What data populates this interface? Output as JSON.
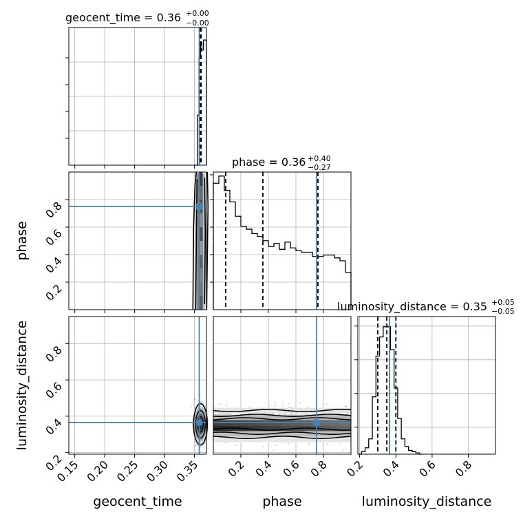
{
  "chart_data": {
    "type": "corner",
    "parameters": [
      "geocent_time",
      "phase",
      "luminosity_distance"
    ],
    "truths": {
      "geocent_time": 0.36,
      "phase": 0.75,
      "luminosity_distance": 0.365
    },
    "accent_color": "#4682b4",
    "grid": true,
    "titles": [
      {
        "name": "geocent_time",
        "median": "0.36",
        "plus": "+0.00",
        "minus": "−0.00"
      },
      {
        "name": "phase",
        "median": "0.36",
        "plus": "+0.40",
        "minus": "−0.27"
      },
      {
        "name": "luminosity_distance",
        "median": "0.35",
        "plus": "+0.05",
        "minus": "−0.05"
      }
    ],
    "axes": {
      "geocent_time": {
        "xlabel": "geocent_time",
        "range": [
          0.14,
          0.37
        ],
        "ticks": [
          0.15,
          0.2,
          0.25,
          0.3,
          0.35
        ],
        "tick_labels": [
          "0.15",
          "0.20",
          "0.25",
          "0.30",
          "0.35"
        ]
      },
      "phase": {
        "ylabel": "phase",
        "xlabel": "phase",
        "range": [
          0.0,
          1.0
        ],
        "ticks": [
          0.2,
          0.4,
          0.6,
          0.8
        ],
        "tick_labels": [
          "0.2",
          "0.4",
          "0.6",
          "0.8"
        ]
      },
      "luminosity_distance": {
        "ylabel": "luminosity_distance",
        "xlabel": "luminosity_distance",
        "range": [
          0.19,
          0.95
        ],
        "ticks": [
          0.2,
          0.4,
          0.6,
          0.8
        ],
        "tick_labels": [
          "0.2",
          "0.4",
          "0.6",
          "0.8"
        ]
      }
    },
    "histograms": {
      "geocent_time": {
        "edges": [
          0.35,
          0.355,
          0.3575,
          0.36,
          0.3625,
          0.365,
          0.37
        ],
        "values": [
          0,
          0.4,
          0.85,
          0.98,
          0.92,
          1.0
        ],
        "quantiles": [
          0.3597,
          0.3604,
          0.3611
        ]
      },
      "phase": {
        "edges": [
          0.0,
          0.04,
          0.08,
          0.12,
          0.16,
          0.2,
          0.24,
          0.28,
          0.32,
          0.36,
          0.4,
          0.44,
          0.48,
          0.52,
          0.56,
          0.6,
          0.64,
          0.68,
          0.72,
          0.76,
          0.8,
          0.84,
          0.88,
          0.92,
          0.96,
          1.0
        ],
        "values": [
          0.88,
          0.93,
          0.83,
          0.75,
          0.65,
          0.58,
          0.56,
          0.53,
          0.51,
          0.48,
          0.44,
          0.46,
          0.42,
          0.47,
          0.43,
          0.41,
          0.4,
          0.4,
          0.37,
          0.37,
          0.38,
          0.38,
          0.36,
          0.34,
          0.26
        ],
        "quantiles": [
          0.09,
          0.36,
          0.76
        ]
      },
      "luminosity_distance": {
        "edges": [
          0.19,
          0.21,
          0.23,
          0.25,
          0.27,
          0.29,
          0.31,
          0.33,
          0.35,
          0.37,
          0.39,
          0.41,
          0.43,
          0.45,
          0.47,
          0.49,
          0.51,
          0.53,
          0.55
        ],
        "values": [
          0.0,
          0.02,
          0.05,
          0.12,
          0.45,
          0.77,
          0.92,
          1.0,
          1.0,
          0.82,
          0.52,
          0.28,
          0.12,
          0.06,
          0.03,
          0.02,
          0.01,
          0.0
        ],
        "quantiles": [
          0.3,
          0.35,
          0.4
        ]
      }
    },
    "contours_2d": [
      {
        "x": "geocent_time",
        "y": "phase",
        "x_center": 0.36,
        "x_spread": 0.0035
      },
      {
        "x": "geocent_time",
        "y": "luminosity_distance",
        "x_center": 0.36,
        "y_center": 0.355,
        "x_spread": 0.003,
        "y_spread": 0.05
      },
      {
        "x": "phase",
        "y": "luminosity_distance",
        "y_center": 0.355,
        "y_spread": 0.05,
        "contour_levels": [
          0.31,
          0.33,
          0.335,
          0.39,
          0.4,
          0.42
        ]
      }
    ]
  }
}
